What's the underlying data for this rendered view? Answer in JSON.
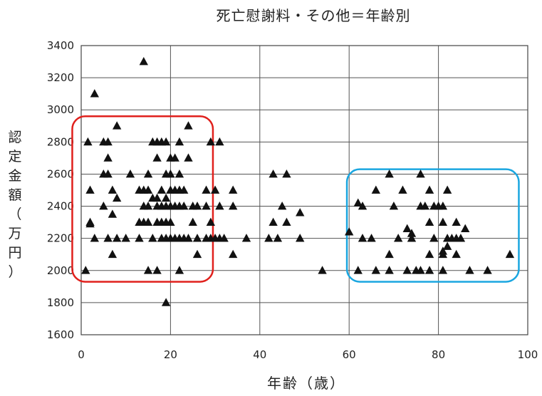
{
  "chart_data": {
    "type": "scatter",
    "title": "死亡慰謝料・その他＝年齢別",
    "xlabel": "年齢（歳）",
    "ylabel": "認定金額（万円）",
    "xlim": [
      0,
      100
    ],
    "ylim": [
      1600,
      3400
    ],
    "xticks": [
      0,
      20,
      40,
      60,
      80,
      100
    ],
    "yticks": [
      1600,
      1800,
      2000,
      2200,
      2400,
      2600,
      2800,
      3000,
      3200,
      3400
    ],
    "grid": true,
    "marker": "triangle",
    "marker_color": "#111111",
    "highlight_boxes": [
      {
        "color": "#e0201c",
        "x_range": [
          -2,
          29.5
        ],
        "y_range": [
          1930,
          2960
        ]
      },
      {
        "color": "#1aa6e0",
        "x_range": [
          59.5,
          98
        ],
        "y_range": [
          1930,
          2630
        ]
      }
    ],
    "points": [
      [
        14,
        3300
      ],
      [
        3,
        3100
      ],
      [
        8,
        2900
      ],
      [
        24,
        2900
      ],
      [
        1.5,
        2800
      ],
      [
        5,
        2800
      ],
      [
        6,
        2800
      ],
      [
        16,
        2800
      ],
      [
        17,
        2800
      ],
      [
        18,
        2800
      ],
      [
        19,
        2800
      ],
      [
        22,
        2800
      ],
      [
        29,
        2800
      ],
      [
        31,
        2800
      ],
      [
        6,
        2700
      ],
      [
        17,
        2700
      ],
      [
        20,
        2700
      ],
      [
        21,
        2700
      ],
      [
        24,
        2700
      ],
      [
        5,
        2600
      ],
      [
        6,
        2600
      ],
      [
        11,
        2600
      ],
      [
        15,
        2600
      ],
      [
        19,
        2600
      ],
      [
        20,
        2600
      ],
      [
        22,
        2600
      ],
      [
        43,
        2600
      ],
      [
        46,
        2600
      ],
      [
        69,
        2600
      ],
      [
        76,
        2600
      ],
      [
        2,
        2500
      ],
      [
        7,
        2500
      ],
      [
        13,
        2500
      ],
      [
        14,
        2500
      ],
      [
        15,
        2500
      ],
      [
        18,
        2500
      ],
      [
        20,
        2500
      ],
      [
        21,
        2500
      ],
      [
        22,
        2500
      ],
      [
        23,
        2500
      ],
      [
        28,
        2500
      ],
      [
        30,
        2500
      ],
      [
        34,
        2500
      ],
      [
        66,
        2500
      ],
      [
        72,
        2500
      ],
      [
        78,
        2500
      ],
      [
        82,
        2500
      ],
      [
        8,
        2450
      ],
      [
        16,
        2450
      ],
      [
        17,
        2450
      ],
      [
        19,
        2450
      ],
      [
        62,
        2420
      ],
      [
        63,
        2400
      ],
      [
        5,
        2400
      ],
      [
        14,
        2400
      ],
      [
        15,
        2400
      ],
      [
        17,
        2400
      ],
      [
        18,
        2400
      ],
      [
        19,
        2400
      ],
      [
        20,
        2400
      ],
      [
        21,
        2400
      ],
      [
        22,
        2400
      ],
      [
        23,
        2400
      ],
      [
        25,
        2400
      ],
      [
        26,
        2400
      ],
      [
        28,
        2400
      ],
      [
        31,
        2400
      ],
      [
        34,
        2400
      ],
      [
        45,
        2400
      ],
      [
        70,
        2400
      ],
      [
        76,
        2400
      ],
      [
        77,
        2400
      ],
      [
        79,
        2400
      ],
      [
        80,
        2400
      ],
      [
        81,
        2400
      ],
      [
        49,
        2360
      ],
      [
        7,
        2350
      ],
      [
        2,
        2300
      ],
      [
        13,
        2300
      ],
      [
        14,
        2300
      ],
      [
        15,
        2300
      ],
      [
        17,
        2300
      ],
      [
        18,
        2300
      ],
      [
        19,
        2300
      ],
      [
        20,
        2300
      ],
      [
        25,
        2300
      ],
      [
        29,
        2300
      ],
      [
        43,
        2300
      ],
      [
        46,
        2300
      ],
      [
        78,
        2300
      ],
      [
        81,
        2300
      ],
      [
        84,
        2300
      ],
      [
        2,
        2290
      ],
      [
        60,
        2240
      ],
      [
        73,
        2260
      ],
      [
        86,
        2260
      ],
      [
        74,
        2230
      ],
      [
        3,
        2200
      ],
      [
        6,
        2200
      ],
      [
        8,
        2200
      ],
      [
        10,
        2200
      ],
      [
        13,
        2200
      ],
      [
        16,
        2200
      ],
      [
        18,
        2200
      ],
      [
        19,
        2200
      ],
      [
        20,
        2200
      ],
      [
        21,
        2200
      ],
      [
        22,
        2200
      ],
      [
        23,
        2200
      ],
      [
        24,
        2200
      ],
      [
        26,
        2200
      ],
      [
        28,
        2200
      ],
      [
        29,
        2200
      ],
      [
        30,
        2200
      ],
      [
        31,
        2200
      ],
      [
        32,
        2200
      ],
      [
        37,
        2200
      ],
      [
        42,
        2200
      ],
      [
        44,
        2200
      ],
      [
        49,
        2200
      ],
      [
        63,
        2200
      ],
      [
        65,
        2200
      ],
      [
        71,
        2200
      ],
      [
        74,
        2200
      ],
      [
        79,
        2200
      ],
      [
        82,
        2200
      ],
      [
        83,
        2200
      ],
      [
        84,
        2200
      ],
      [
        85,
        2200
      ],
      [
        82,
        2150
      ],
      [
        81,
        2120
      ],
      [
        7,
        2100
      ],
      [
        26,
        2100
      ],
      [
        34,
        2100
      ],
      [
        69,
        2100
      ],
      [
        78,
        2100
      ],
      [
        81,
        2100
      ],
      [
        84,
        2100
      ],
      [
        96,
        2100
      ],
      [
        1,
        2000
      ],
      [
        15,
        2000
      ],
      [
        17,
        2000
      ],
      [
        22,
        2000
      ],
      [
        54,
        2000
      ],
      [
        62,
        2000
      ],
      [
        66,
        2000
      ],
      [
        69,
        2000
      ],
      [
        73,
        2000
      ],
      [
        75,
        2000
      ],
      [
        76,
        2000
      ],
      [
        78,
        2000
      ],
      [
        81,
        2000
      ],
      [
        87,
        2000
      ],
      [
        91,
        2000
      ],
      [
        19,
        1800
      ]
    ]
  }
}
